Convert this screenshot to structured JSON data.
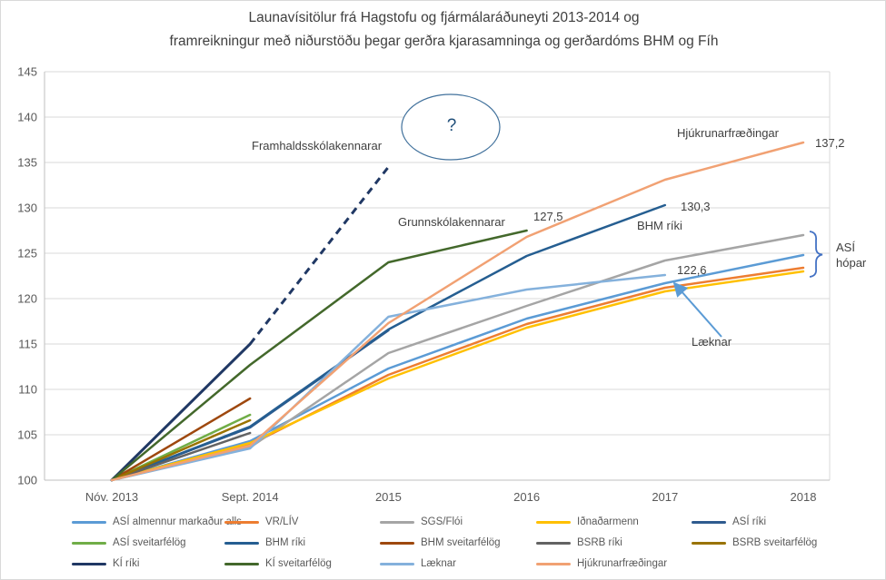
{
  "title": {
    "line1": "Launavísitölur frá Hagstofu og fjármálaráðuneyti 2013-2014 og",
    "line2": "framreikningur með niðurstöðu þegar gerðra kjarasamninga og gerðardóms BHM og Fíh"
  },
  "chart_data": {
    "type": "line",
    "x_categories": [
      "Nóv. 2013",
      "Sept. 2014",
      "2015",
      "2016",
      "2017",
      "2018"
    ],
    "y_ticks": [
      100,
      105,
      110,
      115,
      120,
      125,
      130,
      135,
      140,
      145
    ],
    "ylim": [
      100,
      145
    ],
    "grid": true,
    "legend_position": "bottom",
    "series": [
      {
        "name": "ASÍ almennur markaður alls",
        "color": "#5B9BD5",
        "values": [
          100,
          104.3,
          112.3,
          117.8,
          121.7,
          124.8
        ]
      },
      {
        "name": "VR/LÍV",
        "color": "#ED7D31",
        "values": [
          100,
          103.9,
          111.6,
          117.2,
          121.2,
          123.4
        ]
      },
      {
        "name": "SGS/Flói",
        "color": "#A5A5A5",
        "values": [
          100,
          103.6,
          114.0,
          119.2,
          124.2,
          127.0
        ]
      },
      {
        "name": "Iðnaðarmenn",
        "color": "#FFC000",
        "values": [
          100,
          104.1,
          111.2,
          116.8,
          120.8,
          123.0
        ]
      },
      {
        "name": "ASÍ ríki",
        "color": "#2F5B8F",
        "values": [
          100,
          105.8,
          116.5
        ]
      },
      {
        "name": "ASÍ sveitarfélög",
        "color": "#70AD47",
        "values": [
          100,
          107.2
        ]
      },
      {
        "name": "BHM ríki",
        "color": "#255E91",
        "values": [
          100,
          105.9,
          116.6,
          124.7,
          130.3
        ]
      },
      {
        "name": "BHM sveitarfélög",
        "color": "#9E480E",
        "values": [
          100,
          109.0
        ]
      },
      {
        "name": "BSRB ríki",
        "color": "#636363",
        "values": [
          100,
          105.2
        ]
      },
      {
        "name": "BSRB sveitarfélög",
        "color": "#997300",
        "values": [
          100,
          106.6
        ]
      },
      {
        "name": "KÍ ríki",
        "color": "#203864",
        "values": [
          100,
          115.0
        ],
        "width": 3
      },
      {
        "name": "Framhaldsskólakennarar framreikningur",
        "color": "#203864",
        "values": [
          null,
          115.0,
          134.5
        ],
        "dashed": true,
        "width": 3,
        "in_legend": false
      },
      {
        "name": "KÍ sveitarfélög",
        "color": "#43682B",
        "values": [
          100,
          112.7,
          124.0,
          127.5
        ]
      },
      {
        "name": "Læknar",
        "color": "#84B1DC",
        "values": [
          100,
          103.5,
          118.0,
          121.0,
          122.6
        ]
      },
      {
        "name": "Hjúkrunarfræðingar",
        "color": "#F1A173",
        "values": [
          100,
          103.8,
          117.3,
          126.8,
          133.1,
          137.2
        ]
      }
    ],
    "legend_rows": [
      5,
      5,
      4
    ]
  },
  "annotations": {
    "framhaldsskolakennarar": "Framhaldsskólakennarar",
    "question_mark": "?",
    "grunnskolakennarar": "Grunnskólakennarar",
    "hjukrunarfraedingar": "Hjúkrunarfræðingar",
    "bhm_riki": "BHM ríki",
    "laeknar": "Læknar",
    "asi_hopar": "ASÍ hópar",
    "values": {
      "hjukrunarfraedingar_2018": "137,2",
      "bhm_riki_2017": "130,3",
      "laeknar_2017": "122,6",
      "ki_sveitarfelog_2016": "127,5"
    }
  },
  "colors": {
    "annotation_accent": "#4472C4",
    "arrow": "#5B9BD5",
    "ellipse_stroke": "#41719C",
    "gridline": "#D9D9D9",
    "axis_line": "#BFBFBF",
    "text_dark": "#404040",
    "text_axis": "#595959"
  }
}
